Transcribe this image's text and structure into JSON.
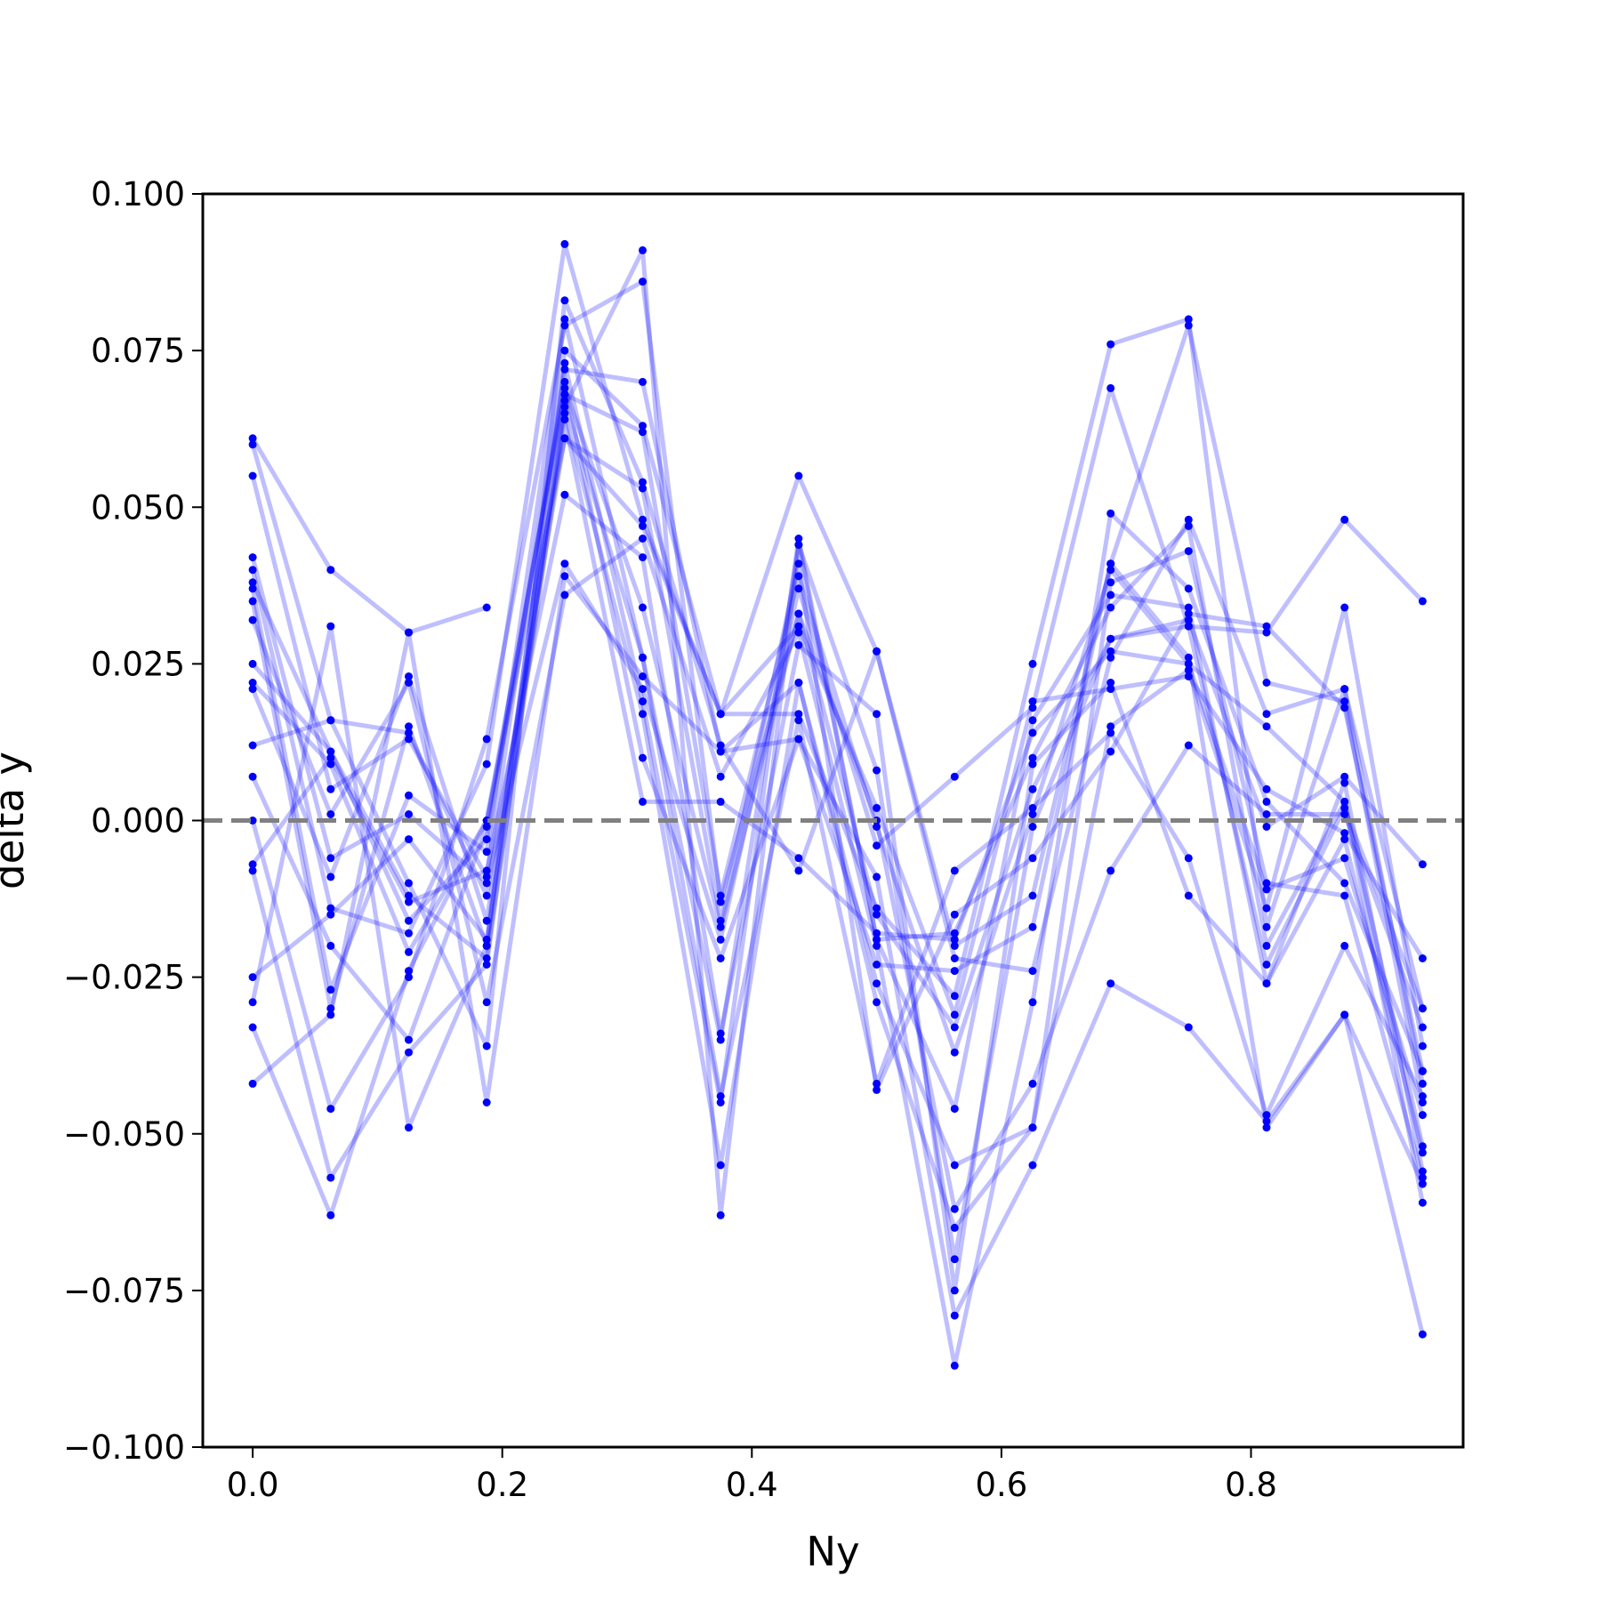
{
  "chart_data": {
    "type": "line",
    "xlabel": "Ny",
    "ylabel": "delta y",
    "xlim": [
      -0.04,
      0.97
    ],
    "ylim": [
      -0.1,
      0.1
    ],
    "x_ticks": [
      "0.0",
      "0.2",
      "0.4",
      "0.6",
      "0.8"
    ],
    "y_ticks": [
      "0.100",
      "0.075",
      "0.050",
      "0.025",
      "0.000",
      "−0.025",
      "−0.050",
      "−0.075",
      "−0.100"
    ],
    "reference_line": {
      "y": 0.0,
      "style": "dashed",
      "color": "#808080"
    },
    "series_color": "#0000ff",
    "series_alpha": 0.25,
    "grid": false,
    "legend": "none",
    "x": [
      0.0,
      0.0625,
      0.125,
      0.1875,
      0.25,
      0.3125,
      0.375,
      0.4375,
      0.5,
      0.5625,
      0.625,
      0.6875,
      0.75,
      0.8125,
      0.875,
      0.9375
    ],
    "series": [
      {
        "values": [
          0.061,
          0.04,
          0.03,
          0.034,
          null,
          null,
          null,
          null,
          null,
          null,
          null,
          null,
          null,
          null,
          null,
          null
        ]
      },
      {
        "values": [
          0.06,
          0.016,
          -0.01,
          -0.036,
          0.083,
          0.054,
          0.012,
          -0.008,
          0.027,
          -0.02,
          -0.012,
          0.041,
          0.079,
          0.022,
          0.019,
          -0.045
        ]
      },
      {
        "values": [
          0.055,
          0.005,
          0.013,
          -0.009,
          0.075,
          0.063,
          0.017,
          0.055,
          0.027,
          -0.022,
          -0.024,
          0.026,
          0.048,
          0.017,
          0.021,
          -0.042
        ]
      },
      {
        "values": [
          0.042,
          -0.006,
          0.001,
          -0.01,
          0.041,
          0.021,
          -0.019,
          0.037,
          -0.004,
          0.007,
          0.018,
          0.069,
          0.031,
          0.03,
          0.048,
          0.035
        ]
      },
      {
        "values": [
          0.04,
          -0.014,
          -0.018,
          0.009,
          0.092,
          0.048,
          0.017,
          0.017,
          -0.014,
          -0.028,
          0.025,
          0.076,
          0.08,
          -0.017,
          0.021,
          -0.03
        ]
      },
      {
        "values": [
          0.038,
          0.011,
          -0.012,
          -0.022,
          0.064,
          0.003,
          0.003,
          -0.006,
          -0.018,
          -0.019,
          0.014,
          0.027,
          0.025,
          -0.011,
          -0.006,
          -0.047
        ]
      },
      {
        "values": [
          0.037,
          -0.027,
          0.004,
          -0.005,
          0.08,
          0.026,
          -0.035,
          0.044,
          0.008,
          -0.07,
          -0.001,
          0.029,
          0.031,
          -0.023,
          0.002,
          -0.03
        ]
      },
      {
        "values": [
          0.035,
          -0.03,
          0.015,
          -0.02,
          0.073,
          0.019,
          -0.045,
          0.045,
          -0.019,
          -0.046,
          0.016,
          0.036,
          0.034,
          -0.026,
          0.006,
          -0.056
        ]
      },
      {
        "values": [
          0.032,
          0.001,
          0.022,
          -0.029,
          0.036,
          0.045,
          0.007,
          0.03,
          -0.02,
          -0.087,
          -0.029,
          0.049,
          0.037,
          0.003,
          -0.01,
          -0.04
        ]
      },
      {
        "values": [
          0.025,
          0.011,
          -0.016,
          -0.003,
          0.07,
          0.01,
          -0.022,
          0.013,
          -0.023,
          -0.024,
          -0.017,
          0.041,
          0.026,
          -0.049,
          -0.031,
          -0.082
        ]
      },
      {
        "values": [
          0.022,
          0.009,
          -0.021,
          0.0,
          0.068,
          0.062,
          -0.012,
          0.039,
          -0.001,
          -0.037,
          0.001,
          0.04,
          0.025,
          0.015,
          0.003,
          -0.052
        ]
      },
      {
        "values": [
          0.021,
          -0.009,
          0.023,
          -0.016,
          0.065,
          0.017,
          -0.055,
          0.022,
          -0.029,
          -0.065,
          -0.049,
          0.038,
          0.043,
          -0.01,
          -0.012,
          -0.057
        ]
      },
      {
        "values": [
          0.012,
          0.016,
          0.014,
          -0.012,
          0.061,
          0.047,
          0.017,
          0.031,
          0.002,
          -0.031,
          0.019,
          0.021,
          0.023,
          0.005,
          -0.002,
          -0.022
        ]
      },
      {
        "values": [
          0.007,
          -0.02,
          -0.035,
          -0.001,
          0.069,
          0.034,
          -0.017,
          0.033,
          -0.015,
          -0.033,
          0.005,
          0.029,
          0.032,
          -0.001,
          0.007,
          -0.007
        ]
      },
      {
        "values": [
          0.0,
          -0.046,
          -0.025,
          0.013,
          0.079,
          0.086,
          -0.013,
          0.033,
          0.0,
          -0.062,
          -0.042,
          -0.008,
          0.012,
          0.001,
          0.001,
          -0.033
        ]
      },
      {
        "values": [
          -0.007,
          0.01,
          -0.013,
          -0.008,
          0.052,
          0.042,
          -0.034,
          0.028,
          0.017,
          -0.075,
          0.009,
          0.022,
          -0.012,
          -0.026,
          -0.003,
          -0.053
        ]
      },
      {
        "values": [
          -0.008,
          -0.057,
          -0.037,
          -0.023,
          0.067,
          0.026,
          -0.044,
          0.016,
          -0.042,
          -0.008,
          0.002,
          0.014,
          -0.006,
          -0.047,
          -0.02,
          -0.044
        ]
      },
      {
        "values": [
          -0.025,
          -0.015,
          -0.003,
          -0.019,
          0.072,
          0.07,
          0.011,
          0.022,
          -0.026,
          -0.055,
          -0.049,
          0.015,
          0.024,
          -0.014,
          0.034,
          -0.036
        ]
      },
      {
        "values": [
          -0.029,
          0.031,
          -0.049,
          -0.02,
          0.066,
          0.091,
          -0.063,
          0.044,
          -0.019,
          -0.018,
          0.01,
          0.034,
          0.047,
          -0.02,
          0.003,
          -0.061
        ]
      },
      {
        "values": [
          -0.033,
          -0.063,
          -0.024,
          0.0,
          0.061,
          0.053,
          -0.016,
          0.041,
          -0.043,
          -0.015,
          -0.006,
          0.011,
          0.033,
          0.031,
          0.018,
          -0.04
        ]
      },
      {
        "values": [
          -0.042,
          -0.031,
          0.03,
          -0.045,
          0.039,
          0.023,
          0.011,
          0.013,
          -0.009,
          -0.079,
          -0.055,
          -0.026,
          -0.033,
          -0.048,
          -0.031,
          -0.058
        ]
      }
    ]
  }
}
